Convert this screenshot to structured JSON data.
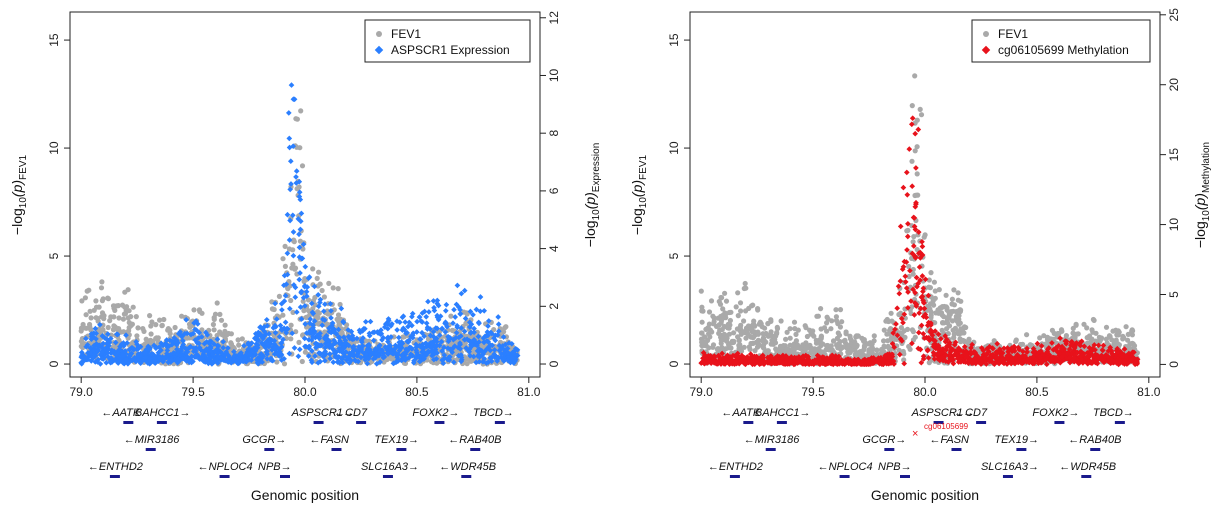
{
  "colors": {
    "fev1": "#a9a9a9",
    "expression": "#2b7fff",
    "methylation": "#e8121b",
    "gene": "#1a1a8c"
  },
  "chart_data": [
    {
      "type": "scatter",
      "xlabel": "Genomic position",
      "ylabel_left": "−log",
      "ylabel_left_sub": "10",
      "ylabel_left_p": "(p)",
      "ylabel_left_tag": "FEV1",
      "ylabel_right": "−log",
      "ylabel_right_sub": "10",
      "ylabel_right_p": "(p)",
      "ylabel_right_tag": "Expression",
      "xlim": [
        78.95,
        81.05
      ],
      "ylim_left": [
        -0.6,
        16.3
      ],
      "ylim_right": [
        -0.45,
        12.2
      ],
      "x_ticks": [
        "79.0",
        "79.5",
        "80.0",
        "80.5",
        "81.0"
      ],
      "y_left_ticks": [
        "0",
        "5",
        "10",
        "15"
      ],
      "y_right_ticks": [
        "0",
        "2",
        "4",
        "6",
        "8",
        "10",
        "12"
      ],
      "legend": {
        "placement": "top-right",
        "items": [
          "FEV1",
          "ASPSCR1 Expression"
        ]
      },
      "series": [
        {
          "name": "FEV1",
          "axis": "left",
          "color": "#a9a9a9",
          "profile": [
            [
              79.0,
              1.6,
              2.4
            ],
            [
              79.1,
              1.8,
              2.5
            ],
            [
              79.2,
              1.6,
              2.4
            ],
            [
              79.3,
              0.7,
              1.6
            ],
            [
              79.4,
              0.7,
              1.6
            ],
            [
              79.5,
              0.9,
              1.8
            ],
            [
              79.6,
              1.0,
              2.0
            ],
            [
              79.7,
              0.4,
              1.0
            ],
            [
              79.8,
              0.4,
              1.0
            ],
            [
              79.9,
              1.5,
              3.5
            ],
            [
              79.95,
              10.0,
              6.0
            ],
            [
              79.98,
              12.0,
              4.0
            ],
            [
              80.0,
              3.5,
              3.0
            ],
            [
              80.05,
              2.8,
              1.8
            ],
            [
              80.15,
              2.5,
              1.5
            ],
            [
              80.2,
              0.5,
              0.8
            ],
            [
              80.4,
              0.5,
              0.8
            ],
            [
              80.6,
              0.7,
              1.2
            ],
            [
              80.7,
              1.1,
              1.6
            ],
            [
              80.8,
              0.8,
              1.2
            ],
            [
              80.9,
              0.9,
              1.3
            ],
            [
              80.95,
              0.6,
              1.0
            ]
          ]
        },
        {
          "name": "ASPSCR1 Expression",
          "axis": "right",
          "color": "#2b7fff",
          "profile": [
            [
              79.0,
              0.3,
              0.5
            ],
            [
              79.1,
              0.5,
              1.2
            ],
            [
              79.2,
              0.3,
              0.8
            ],
            [
              79.3,
              0.2,
              0.5
            ],
            [
              79.4,
              0.3,
              0.8
            ],
            [
              79.5,
              0.6,
              1.4
            ],
            [
              79.6,
              0.3,
              0.8
            ],
            [
              79.7,
              0.1,
              0.3
            ],
            [
              79.8,
              0.8,
              1.2
            ],
            [
              79.9,
              0.8,
              1.5
            ],
            [
              79.93,
              7.0,
              4.5
            ],
            [
              79.96,
              9.0,
              3.0
            ],
            [
              80.0,
              1.5,
              2.5
            ],
            [
              80.1,
              0.8,
              1.8
            ],
            [
              80.2,
              0.6,
              1.0
            ],
            [
              80.3,
              0.5,
              1.3
            ],
            [
              80.5,
              0.6,
              1.5
            ],
            [
              80.65,
              1.0,
              2.2
            ],
            [
              80.75,
              0.9,
              1.8
            ],
            [
              80.9,
              0.5,
              1.0
            ],
            [
              80.95,
              0.2,
              0.4
            ]
          ]
        }
      ]
    },
    {
      "type": "scatter",
      "xlabel": "Genomic position",
      "ylabel_left": "−log",
      "ylabel_left_sub": "10",
      "ylabel_left_p": "(p)",
      "ylabel_left_tag": "FEV1",
      "ylabel_right": "−log",
      "ylabel_right_sub": "10",
      "ylabel_right_p": "(p)",
      "ylabel_right_tag": "Methylation",
      "xlim": [
        78.95,
        81.05
      ],
      "ylim_left": [
        -0.6,
        16.3
      ],
      "ylim_right": [
        -0.9,
        25.2
      ],
      "x_ticks": [
        "79.0",
        "79.5",
        "80.0",
        "80.5",
        "81.0"
      ],
      "y_left_ticks": [
        "0",
        "5",
        "10",
        "15"
      ],
      "y_right_ticks": [
        "0",
        "5",
        "10",
        "15",
        "20",
        "25"
      ],
      "legend": {
        "placement": "top-right",
        "items": [
          "FEV1",
          "cg06105699 Methylation"
        ]
      },
      "annotation": {
        "text": "cg06105699",
        "x": 79.96
      },
      "series": [
        {
          "name": "FEV1",
          "axis": "left",
          "color": "#a9a9a9",
          "profile": [
            [
              79.0,
              1.6,
              2.4
            ],
            [
              79.1,
              1.8,
              2.5
            ],
            [
              79.2,
              1.6,
              2.4
            ],
            [
              79.3,
              0.7,
              1.6
            ],
            [
              79.4,
              0.7,
              1.6
            ],
            [
              79.5,
              0.9,
              1.8
            ],
            [
              79.6,
              1.0,
              2.0
            ],
            [
              79.7,
              0.4,
              1.0
            ],
            [
              79.8,
              0.4,
              1.0
            ],
            [
              79.9,
              1.5,
              3.5
            ],
            [
              79.95,
              10.0,
              6.0
            ],
            [
              79.98,
              12.0,
              4.0
            ],
            [
              80.0,
              3.5,
              3.0
            ],
            [
              80.05,
              2.8,
              1.8
            ],
            [
              80.15,
              2.5,
              1.5
            ],
            [
              80.2,
              0.5,
              0.8
            ],
            [
              80.4,
              0.5,
              0.8
            ],
            [
              80.6,
              0.7,
              1.2
            ],
            [
              80.7,
              1.1,
              1.6
            ],
            [
              80.8,
              0.8,
              1.2
            ],
            [
              80.9,
              0.9,
              1.3
            ],
            [
              80.95,
              0.6,
              1.0
            ]
          ]
        },
        {
          "name": "cg06105699 Methylation",
          "axis": "right",
          "color": "#e8121b",
          "profile": [
            [
              79.0,
              0.3,
              0.6
            ],
            [
              79.2,
              0.3,
              0.6
            ],
            [
              79.4,
              0.2,
              0.5
            ],
            [
              79.6,
              0.2,
              0.5
            ],
            [
              79.7,
              0.1,
              0.3
            ],
            [
              79.85,
              0.3,
              0.6
            ],
            [
              79.93,
              12.0,
              8.0
            ],
            [
              79.96,
              14.0,
              8.0
            ],
            [
              80.0,
              4.0,
              4.0
            ],
            [
              80.05,
              1.0,
              1.5
            ],
            [
              80.2,
              0.5,
              1.0
            ],
            [
              80.5,
              0.4,
              1.2
            ],
            [
              80.6,
              0.6,
              1.5
            ],
            [
              80.8,
              0.5,
              1.2
            ],
            [
              80.95,
              0.3,
              0.6
            ]
          ]
        }
      ]
    }
  ],
  "genes": {
    "row1": [
      {
        "name": "AATK",
        "dir": "left",
        "pos": 79.09
      },
      {
        "name": "BAHCC1",
        "dir": "right",
        "pos": 79.24
      },
      {
        "name": "ASPSCR1",
        "dir": "right",
        "pos": 79.94
      },
      {
        "name": "CD7",
        "dir": "left",
        "pos": 80.13
      },
      {
        "name": "FOXK2",
        "dir": "right",
        "pos": 80.48
      },
      {
        "name": "TBCD",
        "dir": "right",
        "pos": 80.75
      }
    ],
    "row2": [
      {
        "name": "MIR3186",
        "dir": "left",
        "pos": 79.19
      },
      {
        "name": "GCGR",
        "dir": "right",
        "pos": 79.72
      },
      {
        "name": "FASN",
        "dir": "left",
        "pos": 80.02
      },
      {
        "name": "TEX19",
        "dir": "right",
        "pos": 80.31
      },
      {
        "name": "RAB40B",
        "dir": "left",
        "pos": 80.64
      }
    ],
    "row3": [
      {
        "name": "ENTHD2",
        "dir": "left",
        "pos": 79.03
      },
      {
        "name": "NPLOC4",
        "dir": "left",
        "pos": 79.52
      },
      {
        "name": "NPB",
        "dir": "right",
        "pos": 79.79
      },
      {
        "name": "SLC16A3",
        "dir": "right",
        "pos": 80.25
      },
      {
        "name": "WDR45B",
        "dir": "left",
        "pos": 80.6
      }
    ]
  }
}
